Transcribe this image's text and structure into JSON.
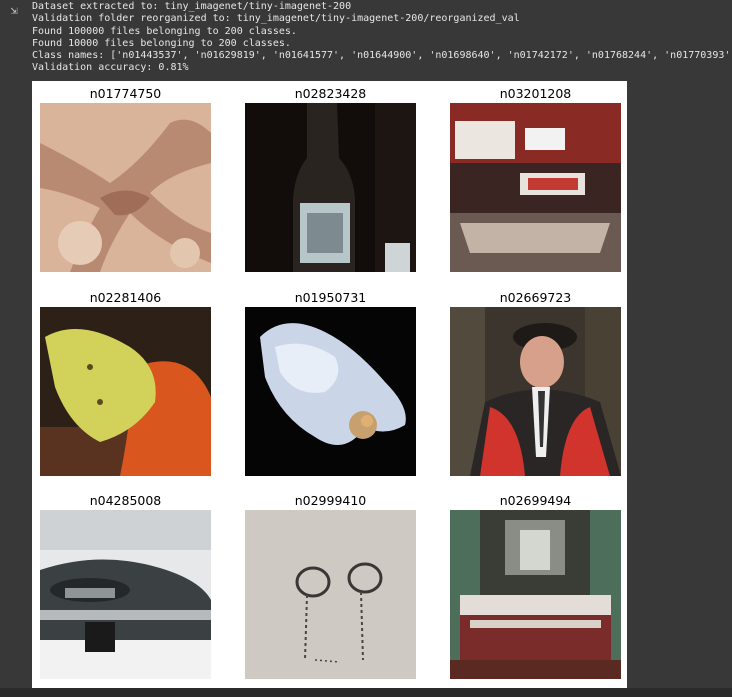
{
  "output": {
    "icon": "output-toggle-icon",
    "lines": [
      "Dataset extracted to: tiny_imagenet/tiny-imagenet-200",
      "Validation folder reorganized to: tiny_imagenet/tiny-imagenet-200/reorganized_val",
      "Found 100000 files belonging to 200 classes.",
      "Found 10000 files belonging to 200 classes.",
      "Class names: ['n01443537', 'n01629819', 'n01641577', 'n01644900', 'n01698640', 'n01742172', 'n01768244', 'n01770393', 'n01",
      "Validation accuracy: 0.81%"
    ]
  },
  "figure": {
    "titles": [
      "n01774750",
      "n02823428",
      "n03201208",
      "n02281406",
      "n01950731",
      "n02669723",
      "n04285008",
      "n02999410",
      "n02699494"
    ]
  }
}
